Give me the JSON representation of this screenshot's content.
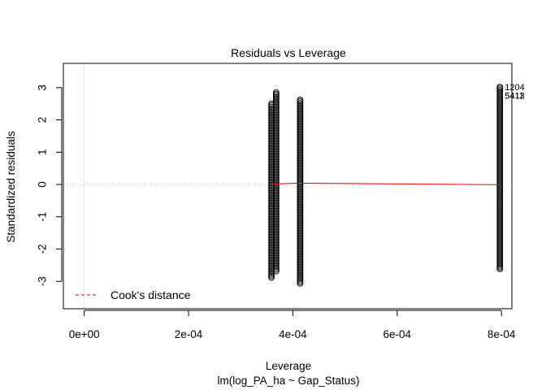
{
  "chart_data": {
    "type": "scatter",
    "title": "Residuals vs Leverage",
    "xlabel": "Leverage",
    "ylabel": "Standardized residuals",
    "subtitle": "lm(log_PA_ha ~ Gap_Status)",
    "xlim": [
      -4e-05,
      0.00082
    ],
    "ylim": [
      -3.85,
      3.75
    ],
    "x_ticks": [
      0,
      0.0002,
      0.0004,
      0.0006,
      0.0008
    ],
    "x_tick_labels": [
      "0e+00",
      "2e-04",
      "4e-04",
      "6e-04",
      "8e-04"
    ],
    "y_ticks": [
      -3,
      -2,
      -1,
      0,
      1,
      2,
      3
    ],
    "y_tick_labels": [
      "-3",
      "-2",
      "-1",
      "0",
      "1",
      "2",
      "3"
    ],
    "grid": false,
    "reference_lines": {
      "vertical_x": 0,
      "horizontal_y": 0,
      "style": "dotted grey"
    },
    "series": [
      {
        "x": 0.000359,
        "ymin": -2.92,
        "ymax": 2.5,
        "marker": "open circle"
      },
      {
        "x": 0.000368,
        "ymin": -2.7,
        "ymax": 2.85,
        "marker": "open circle"
      },
      {
        "x": 0.000414,
        "ymin": -3.08,
        "ymax": 2.62,
        "marker": "open circle"
      },
      {
        "x": 0.000797,
        "ymin": -2.62,
        "ymax": 3.02,
        "marker": "open circle"
      }
    ],
    "smooth_line": {
      "color": "#ff0000",
      "x": [
        0.000359,
        0.000368,
        0.000414,
        0.000797
      ],
      "y": [
        0.02,
        0.02,
        0.04,
        -0.01
      ]
    },
    "outlier_labels": [
      {
        "label": "1204",
        "x": 0.000797,
        "y": 3.02
      },
      {
        "label": "5413",
        "x": 0.000797,
        "y": 2.75
      },
      {
        "label": "5411",
        "x": 0.000797,
        "y": 2.75
      }
    ],
    "legend": {
      "position": "bottom-left",
      "entries": [
        {
          "label": "Cook's distance",
          "color": "#ff0000",
          "style": "dashed"
        }
      ]
    }
  }
}
